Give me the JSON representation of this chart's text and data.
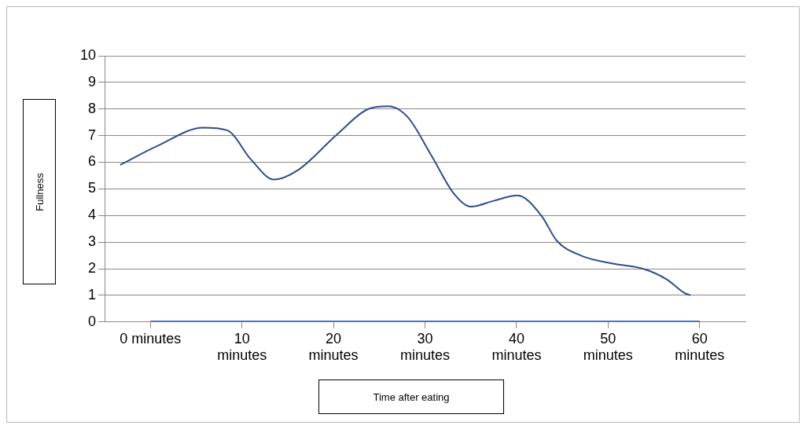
{
  "chart_data": {
    "type": "line",
    "xlabel": "Time after eating",
    "ylabel": "Fullness",
    "xlim": [
      -5,
      65
    ],
    "xticks": [
      {
        "value": 0,
        "label": "0 minutes"
      },
      {
        "value": 10,
        "label": "10 minutes"
      },
      {
        "value": 20,
        "label": "20 minutes"
      },
      {
        "value": 30,
        "label": "30 minutes"
      },
      {
        "value": 40,
        "label": "40 minutes"
      },
      {
        "value": 50,
        "label": "50 minutes"
      },
      {
        "value": 60,
        "label": "60 minutes"
      }
    ],
    "ylim": [
      0,
      10
    ],
    "yticks": [
      0,
      1,
      2,
      3,
      4,
      5,
      6,
      7,
      8,
      9,
      10
    ],
    "grid": "y",
    "legend": false,
    "marker": "none",
    "line_style": "solid",
    "series": [
      {
        "color": "#2e4d8f",
        "x": [
          -3.3,
          0.7,
          5.8,
          8.4,
          11,
          13.5,
          16.1,
          20.4,
          23.8,
          26,
          28.1,
          30.7,
          33.2,
          35,
          37.5,
          40.1,
          42.7,
          44.4,
          47,
          50.4,
          53.8,
          56.4,
          58.3,
          59
        ],
        "values": [
          5.9,
          6.6,
          7.3,
          7.2,
          6.1,
          5.35,
          5.7,
          7.05,
          8,
          8.1,
          7.7,
          6.25,
          4.8,
          4.33,
          4.55,
          4.75,
          4,
          3.05,
          2.5,
          2.2,
          2,
          1.6,
          1.1,
          1
        ]
      },
      {
        "color": "#4472c4",
        "x": [
          0,
          10,
          20,
          30,
          40,
          50,
          60
        ],
        "values": [
          0,
          0,
          0,
          0,
          0,
          0,
          0
        ]
      }
    ]
  }
}
